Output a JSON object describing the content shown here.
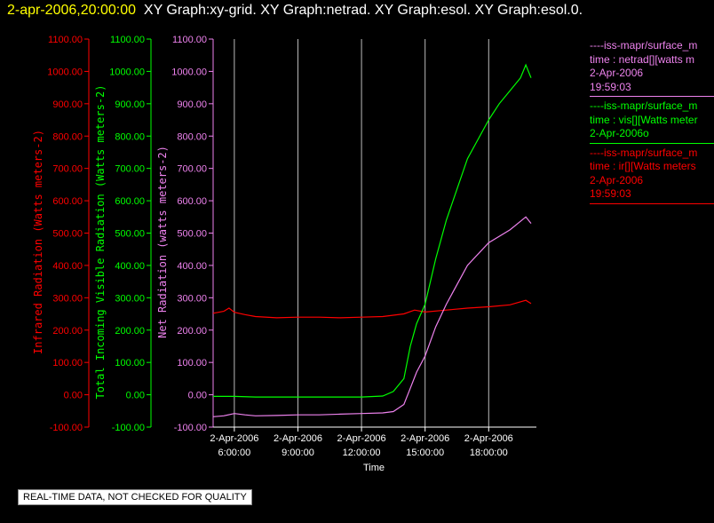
{
  "header": {
    "timestamp": "2-apr-2006,20:00:00",
    "graph_titles": "XY Graph:xy-grid.  XY Graph:netrad.  XY Graph:esol.  XY Graph:esol.0."
  },
  "colors": {
    "infrared": "#ff0000",
    "visible": "#00ff00",
    "net": "#ee82ee",
    "grid": "#dddddd"
  },
  "legend": [
    {
      "lines": [
        "----iss-mapr/surface_m",
        "time : netrad[][watts m",
        "2-Apr-2006",
        "19:59:03"
      ],
      "color": "#ee82ee"
    },
    {
      "lines": [
        "----iss-mapr/surface_m",
        "time : vis[][Watts meter",
        "2-Apr-2006o"
      ],
      "color": "#00ff00"
    },
    {
      "lines": [
        "----iss-mapr/surface_m",
        "time : ir[][Watts meters",
        "2-Apr-2006",
        "19:59:03"
      ],
      "color": "#ff0000"
    }
  ],
  "footer": {
    "quality_notice": "REAL-TIME DATA, NOT CHECKED FOR QUALITY"
  },
  "chart_data": {
    "type": "line",
    "xlabel": "Time",
    "x_ticks": [
      {
        "hour": 6,
        "line1": "2-Apr-2006",
        "line2": "6:00:00"
      },
      {
        "hour": 9,
        "line1": "2-Apr-2006",
        "line2": "9:00:00"
      },
      {
        "hour": 12,
        "line1": "2-Apr-2006",
        "line2": "12:00:00"
      },
      {
        "hour": 15,
        "line1": "2-Apr-2006",
        "line2": "15:00:00"
      },
      {
        "hour": 18,
        "line1": "2-Apr-2006",
        "line2": "18:00:00"
      }
    ],
    "xlim_hours": [
      5.0,
      20.25
    ],
    "grid": "vertical",
    "axes": [
      {
        "key": "ir",
        "label": "Infrared Radiation (Watts meters-2)",
        "color": "#ff0000",
        "ylim": [
          -100,
          1100
        ],
        "ticks": [
          "1100.00",
          "1000.00",
          "900.00",
          "800.00",
          "700.00",
          "600.00",
          "500.00",
          "400.00",
          "300.00",
          "200.00",
          "100.00",
          "0.00",
          "-100.00"
        ]
      },
      {
        "key": "vis",
        "label": "Total Incoming Visible Radiation (Watts meters-2)",
        "color": "#00ff00",
        "ylim": [
          -100,
          1100
        ],
        "ticks": [
          "1100.00",
          "1000.00",
          "900.00",
          "800.00",
          "700.00",
          "600.00",
          "500.00",
          "400.00",
          "300.00",
          "200.00",
          "100.00",
          "0.00",
          "-100.00"
        ]
      },
      {
        "key": "net",
        "label": "Net Radiation (watts meters-2)",
        "color": "#ee82ee",
        "ylim": [
          -100,
          1100
        ],
        "ticks": [
          "1100.00",
          "1000.00",
          "900.00",
          "800.00",
          "700.00",
          "600.00",
          "500.00",
          "400.00",
          "300.00",
          "200.00",
          "100.00",
          "0.00",
          "-100.00"
        ]
      }
    ],
    "series": [
      {
        "name": "ir",
        "color": "#ff0000",
        "x": [
          5.0,
          5.5,
          5.75,
          6.0,
          6.5,
          7.0,
          8.0,
          9.0,
          10.0,
          11.0,
          12.0,
          13.0,
          14.0,
          14.5,
          15.0,
          16.0,
          17.0,
          18.0,
          19.0,
          19.75,
          20.0
        ],
        "y": [
          252,
          258,
          268,
          255,
          248,
          242,
          238,
          240,
          240,
          238,
          240,
          242,
          250,
          262,
          256,
          262,
          268,
          272,
          278,
          292,
          282
        ]
      },
      {
        "name": "vis",
        "color": "#00ff00",
        "x": [
          5.0,
          6.0,
          7.0,
          8.0,
          9.0,
          10.0,
          11.0,
          12.0,
          13.0,
          13.5,
          14.0,
          14.3,
          14.6,
          15.0,
          15.5,
          16.0,
          17.0,
          18.0,
          18.5,
          19.0,
          19.5,
          19.75,
          20.0
        ],
        "y": [
          -5,
          -5,
          -7,
          -7,
          -7,
          -7,
          -7,
          -7,
          -4,
          10,
          50,
          150,
          220,
          280,
          420,
          540,
          730,
          850,
          900,
          940,
          980,
          1020,
          980
        ]
      },
      {
        "name": "net",
        "color": "#ee82ee",
        "x": [
          5.0,
          5.5,
          6.0,
          6.5,
          7.0,
          8.0,
          9.0,
          10.0,
          11.0,
          12.0,
          13.0,
          13.5,
          14.0,
          14.3,
          14.6,
          15.0,
          15.5,
          16.0,
          17.0,
          18.0,
          19.0,
          19.75,
          20.0
        ],
        "y": [
          -68,
          -65,
          -58,
          -62,
          -65,
          -64,
          -62,
          -62,
          -60,
          -58,
          -56,
          -52,
          -30,
          20,
          70,
          120,
          210,
          280,
          400,
          470,
          510,
          550,
          530
        ]
      }
    ]
  }
}
